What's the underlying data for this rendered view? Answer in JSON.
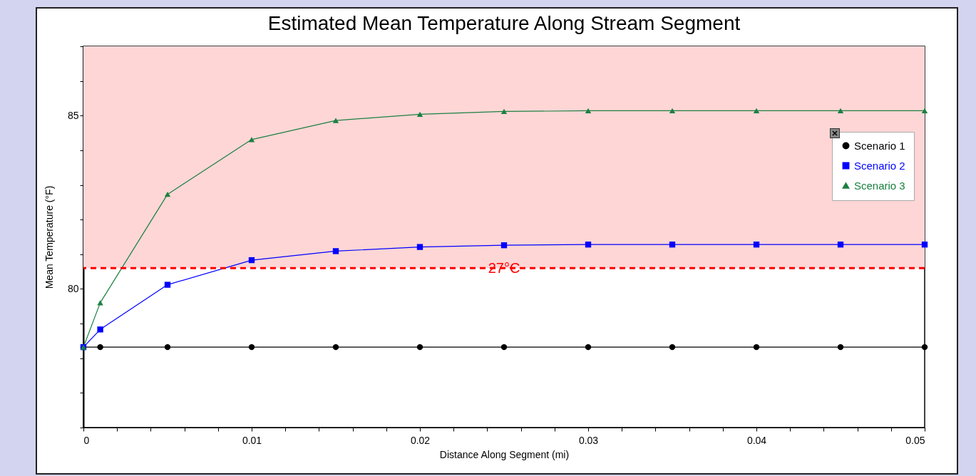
{
  "chart_data": {
    "type": "line",
    "title": "Estimated Mean Temperature Along Stream Segment",
    "xlabel": "Distance Along Segment (mi)",
    "ylabel": "Mean Temperature (°F)",
    "x": [
      0,
      0.001,
      0.005,
      0.01,
      0.015,
      0.02,
      0.025,
      0.03,
      0.035,
      0.04,
      0.045,
      0.05
    ],
    "series": [
      {
        "name": "Scenario 1",
        "color": "#000000",
        "marker": "circle",
        "values": [
          78.32,
          78.32,
          78.32,
          78.32,
          78.32,
          78.32,
          78.32,
          78.32,
          78.32,
          78.32,
          78.32,
          78.32
        ]
      },
      {
        "name": "Scenario 2",
        "color": "#0000ff",
        "marker": "square",
        "values": [
          78.32,
          78.83,
          80.12,
          80.83,
          81.09,
          81.21,
          81.26,
          81.28,
          81.28,
          81.28,
          81.28,
          81.28
        ]
      },
      {
        "name": "Scenario 3",
        "color": "#1a8040",
        "marker": "triangle",
        "values": [
          78.32,
          79.6,
          82.73,
          84.31,
          84.86,
          85.04,
          85.12,
          85.14,
          85.14,
          85.14,
          85.14,
          85.14
        ]
      }
    ],
    "xlim": [
      0,
      0.05
    ],
    "xticks": [
      0,
      {
        "value": 0.002,
        "label": null
      },
      {
        "value": 0.004,
        "label": null
      },
      {
        "value": 0.006,
        "label": null
      },
      {
        "value": 0.008,
        "label": null
      },
      0.01,
      {
        "value": 0.012,
        "label": null
      },
      {
        "value": 0.014,
        "label": null
      },
      {
        "value": 0.016,
        "label": null
      },
      {
        "value": 0.018,
        "label": null
      },
      0.02,
      {
        "value": 0.022,
        "label": null
      },
      {
        "value": 0.024,
        "label": null
      },
      {
        "value": 0.026,
        "label": null
      },
      {
        "value": 0.028,
        "label": null
      },
      0.03,
      {
        "value": 0.032,
        "label": null
      },
      {
        "value": 0.034,
        "label": null
      },
      {
        "value": 0.036,
        "label": null
      },
      {
        "value": 0.038,
        "label": null
      },
      0.04,
      {
        "value": 0.042,
        "label": null
      },
      {
        "value": 0.044,
        "label": null
      },
      {
        "value": 0.046,
        "label": null
      },
      {
        "value": 0.048,
        "label": null
      },
      0.05
    ],
    "ylim": [
      76,
      87
    ],
    "yticks": [
      {
        "value": 76,
        "label": null
      },
      {
        "value": 77,
        "label": null
      },
      {
        "value": 78,
        "label": null
      },
      {
        "value": 79,
        "label": null
      },
      80,
      {
        "value": 81,
        "label": null
      },
      {
        "value": 82,
        "label": null
      },
      {
        "value": 83,
        "label": null
      },
      {
        "value": 84,
        "label": null
      },
      85,
      {
        "value": 86,
        "label": null
      },
      {
        "value": 87,
        "label": null
      }
    ],
    "ref_lines": [
      {
        "axis": "y",
        "value": 80.6,
        "label": "27°C",
        "color": "#ff0000",
        "line_style": "dashed"
      }
    ],
    "bands": [
      {
        "axis": "y",
        "from": 80.6,
        "to": 87,
        "color": "#ffd6d6"
      }
    ],
    "legend": "top right",
    "grid": false,
    "line_style": "solid"
  }
}
